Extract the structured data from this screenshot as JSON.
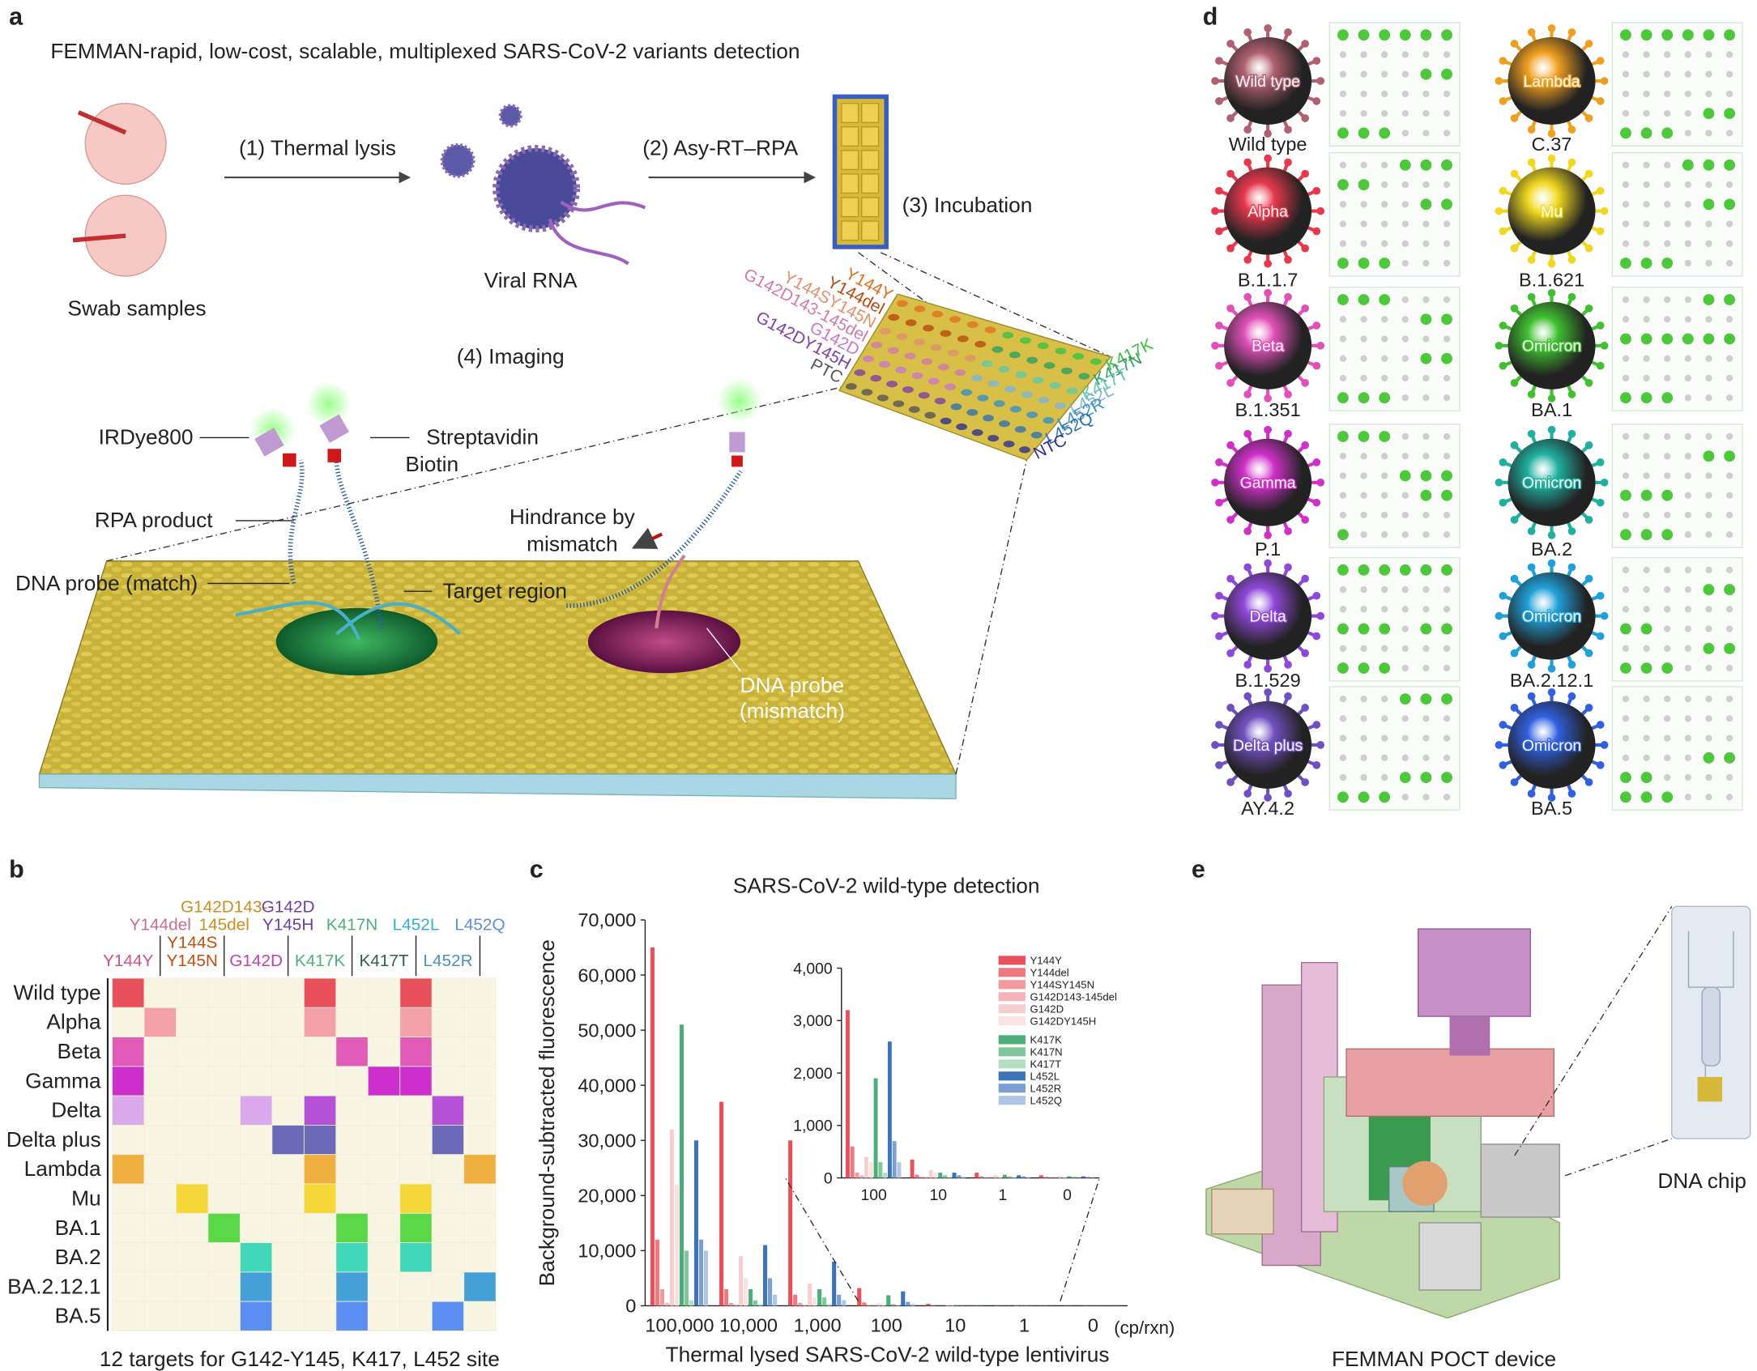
{
  "panel_labels": [
    "a",
    "b",
    "c",
    "d",
    "e"
  ],
  "panel_a": {
    "title": "FEMMAN-rapid, low-cost, scalable, multiplexed SARS-CoV-2 variants detection",
    "steps": [
      "(1) Thermal lysis",
      "(2) Asy-RT–RPA",
      "(3) Incubation",
      "(4) Imaging"
    ],
    "swab": "Swab samples",
    "rna": "Viral RNA",
    "irdye": "IRDye800",
    "streptavidin": "Streptavidin",
    "biotin": "Biotin",
    "rpa": "RPA product",
    "probe_match": "DNA probe (match)",
    "target": "Target region",
    "hindrance": [
      "Hindrance by",
      "mismatch"
    ],
    "probe_mismatch": [
      "DNA probe",
      "(mismatch)"
    ],
    "chip_left": [
      {
        "text": "Y144Y",
        "color": "#e07020"
      },
      {
        "text": "Y144del",
        "color": "#b84a10"
      },
      {
        "text": "Y144SY145N",
        "color": "#e0906a"
      },
      {
        "text": "G142D143-145del",
        "color": "#d07aa8"
      },
      {
        "text": "G142D",
        "color": "#c878c8"
      },
      {
        "text": "G142DY145H",
        "color": "#8040a0"
      },
      {
        "text": "PTC",
        "color": "#555555"
      }
    ],
    "chip_right": [
      {
        "text": "K417K",
        "color": "#3cc040"
      },
      {
        "text": "K417N",
        "color": "#2ea060"
      },
      {
        "text": "K417T",
        "color": "#60c8a8"
      },
      {
        "text": "L452L",
        "color": "#80b4d4"
      },
      {
        "text": "L452R",
        "color": "#3a90c0"
      },
      {
        "text": "L452Q",
        "color": "#3070b0"
      },
      {
        "text": "NTC",
        "color": "#303090"
      }
    ]
  },
  "panel_b": {
    "columns": [
      {
        "lines": [
          "Y144Y"
        ],
        "color": "#d0508a"
      },
      {
        "lines": [
          "Y144del"
        ],
        "color": "#c8708a"
      },
      {
        "lines": [
          "Y144S",
          "Y145N"
        ],
        "color": "#c05010"
      },
      {
        "lines": [
          "G142D143-",
          "145del"
        ],
        "color": "#c79020"
      },
      {
        "lines": [
          "G142D"
        ],
        "color": "#c040b0"
      },
      {
        "lines": [
          "G142D",
          "Y145H"
        ],
        "color": "#7040a0"
      },
      {
        "lines": [
          "K417K"
        ],
        "color": "#50b080"
      },
      {
        "lines": [
          "K417N"
        ],
        "color": "#50b080"
      },
      {
        "lines": [
          "K417T"
        ],
        "color": "#306050"
      },
      {
        "lines": [
          "L452L"
        ],
        "color": "#30b0d0"
      },
      {
        "lines": [
          "L452R"
        ],
        "color": "#5090c0"
      },
      {
        "lines": [
          "L452Q"
        ],
        "color": "#6090d0"
      }
    ],
    "rows": [
      "Wild type",
      "Alpha",
      "Beta",
      "Gamma",
      "Delta",
      "Delta plus",
      "Lambda",
      "Mu",
      "BA.1",
      "BA.2",
      "BA.2.12.1",
      "BA.5"
    ],
    "background": "#f8f6e2",
    "cells": [
      [
        "#e8505b",
        null,
        null,
        null,
        null,
        null,
        "#e8505b",
        null,
        null,
        "#e8505b",
        null,
        null
      ],
      [
        null,
        "#f4a0a8",
        null,
        null,
        null,
        null,
        "#f4a0a8",
        null,
        null,
        "#f4a0a8",
        null,
        null
      ],
      [
        "#e05ab8",
        null,
        null,
        null,
        null,
        null,
        null,
        "#e05ab8",
        null,
        "#e05ab8",
        null,
        null
      ],
      [
        "#cc2fcc",
        null,
        null,
        null,
        null,
        null,
        null,
        null,
        "#cc2fcc",
        "#cc2fcc",
        null,
        null
      ],
      [
        "#dca8ec",
        null,
        null,
        null,
        "#dca8ec",
        null,
        "#b552d8",
        null,
        null,
        null,
        "#b552d8",
        null
      ],
      [
        null,
        null,
        null,
        null,
        null,
        "#6a6ab8",
        "#6a6ab8",
        null,
        null,
        null,
        "#6a6ab8",
        null
      ],
      [
        "#f0b040",
        null,
        null,
        null,
        null,
        null,
        "#f0b040",
        null,
        null,
        null,
        null,
        "#f0b040"
      ],
      [
        null,
        null,
        "#f5d838",
        null,
        null,
        null,
        "#f5d838",
        null,
        null,
        "#f5d838",
        null,
        null
      ],
      [
        null,
        null,
        null,
        "#5ad848",
        null,
        null,
        null,
        "#5ad848",
        null,
        "#5ad848",
        null,
        null
      ],
      [
        null,
        null,
        null,
        null,
        "#40d8b8",
        null,
        null,
        "#40d8b8",
        null,
        "#40d8b8",
        null,
        null
      ],
      [
        null,
        null,
        null,
        null,
        "#45a0d8",
        null,
        null,
        "#45a0d8",
        null,
        null,
        null,
        "#45a0d8"
      ],
      [
        null,
        null,
        null,
        null,
        "#5a8ef0",
        null,
        null,
        "#5a8ef0",
        null,
        null,
        "#5a8ef0",
        null
      ]
    ],
    "caption": "12 targets for G142-Y145, K417, L452 site"
  },
  "chart_data": {
    "type": "bar",
    "title": "SARS-CoV-2 wild-type detection",
    "y_label": "Background-subtracted fluorescence",
    "x_label": "Thermal lysed SARS-CoV-2 wild-type lentivirus",
    "x_unit": "(cp/rxn)",
    "categories": [
      "100,000",
      "10,000",
      "1,000",
      "100",
      "10",
      "1",
      "0"
    ],
    "series": [
      {
        "name": "Y144Y",
        "color": "#e8505b",
        "values": [
          65000,
          37000,
          30000,
          3200,
          350,
          100,
          50
        ]
      },
      {
        "name": "Y144del",
        "color": "#ee7a80",
        "values": [
          12000,
          3000,
          2000,
          600,
          60,
          30,
          20
        ]
      },
      {
        "name": "Y144SY145N",
        "color": "#f29a9e",
        "values": [
          3000,
          500,
          500,
          100,
          20,
          10,
          5
        ]
      },
      {
        "name": "G142D143-145del",
        "color": "#f5b5b8",
        "values": [
          500,
          200,
          100,
          50,
          10,
          5,
          5
        ]
      },
      {
        "name": "G142D",
        "color": "#f8cfd1",
        "values": [
          32000,
          9000,
          4000,
          400,
          150,
          50,
          30
        ]
      },
      {
        "name": "G142DY145H",
        "color": "#fbe2e3",
        "values": [
          22000,
          5000,
          1500,
          300,
          100,
          30,
          20
        ]
      },
      {
        "name": "K417K",
        "color": "#4caf7a",
        "values": [
          51000,
          3000,
          3000,
          1900,
          100,
          60,
          30
        ]
      },
      {
        "name": "K417N",
        "color": "#7fc79b",
        "values": [
          10000,
          1000,
          1500,
          300,
          50,
          30,
          20
        ]
      },
      {
        "name": "K417T",
        "color": "#b3dfc2",
        "values": [
          1000,
          300,
          300,
          100,
          20,
          10,
          5
        ]
      },
      {
        "name": "L452L",
        "color": "#3d74b8",
        "values": [
          30000,
          11000,
          8000,
          2600,
          100,
          50,
          30
        ]
      },
      {
        "name": "L452R",
        "color": "#7a9fd0",
        "values": [
          12000,
          5000,
          2000,
          700,
          50,
          30,
          20
        ]
      },
      {
        "name": "L452Q",
        "color": "#b0c6e6",
        "values": [
          10000,
          2000,
          1000,
          300,
          20,
          10,
          5
        ]
      }
    ],
    "ylim": [
      0,
      70000
    ],
    "yticks": [
      0,
      {
        "value": 10000,
        "label": "10,000"
      },
      {
        "value": 20000,
        "label": "20,000"
      },
      {
        "value": 30000,
        "label": "30,000"
      },
      {
        "value": 40000,
        "label": "40,000"
      },
      {
        "value": 50000,
        "label": "50,000"
      },
      {
        "value": 60000,
        "label": "60,000"
      },
      {
        "value": 70000,
        "label": "70,000"
      }
    ],
    "inset": {
      "ylim": [
        0,
        4000
      ],
      "yticks": [
        0,
        {
          "value": 1000,
          "label": "1,000"
        },
        {
          "value": 2000,
          "label": "2,000"
        },
        {
          "value": 3000,
          "label": "3,000"
        },
        {
          "value": 4000,
          "label": "4,000"
        }
      ]
    }
  },
  "panel_d": {
    "variants": [
      {
        "name": "Wild type",
        "lineage": "Wild type",
        "color": "#b06070",
        "dots": [
          "111111",
          "000000",
          "000011",
          "000000",
          "000000",
          "111000"
        ]
      },
      {
        "name": "Alpha",
        "lineage": "B.1.1.7",
        "color": "#e8384c",
        "dots": [
          "000111",
          "110000",
          "000011",
          "000000",
          "000000",
          "111000"
        ]
      },
      {
        "name": "Beta",
        "lineage": "B.1.351",
        "color": "#e050b8",
        "dots": [
          "111000",
          "000011",
          "000000",
          "000011",
          "000000",
          "111000"
        ]
      },
      {
        "name": "Gamma",
        "lineage": "P.1",
        "color": "#d030c8",
        "dots": [
          "111000",
          "000000",
          "000111",
          "000011",
          "000000",
          "100000"
        ]
      },
      {
        "name": "Delta",
        "lineage": "B.1.529",
        "color": "#9048d8",
        "dots": [
          "111111",
          "000000",
          "000000",
          "111011",
          "000000",
          "111000"
        ]
      },
      {
        "name": "Delta plus",
        "lineage": "AY.4.2",
        "color": "#7050c0",
        "dots": [
          "000111",
          "000000",
          "000000",
          "000000",
          "000111",
          "111000"
        ]
      },
      {
        "name": "Lambda",
        "lineage": "C.37",
        "color": "#f0a020",
        "dots": [
          "111111",
          "000000",
          "000000",
          "000000",
          "000011",
          "111000"
        ]
      },
      {
        "name": "Mu",
        "lineage": "B.1.621",
        "color": "#f0d820",
        "dots": [
          "000111",
          "000000",
          "000011",
          "000000",
          "000000",
          "111000"
        ]
      },
      {
        "name": "Omicron",
        "lineage": "BA.1",
        "color": "#40c030",
        "dots": [
          "000011",
          "000000",
          "111111",
          "000000",
          "000000",
          "111000"
        ]
      },
      {
        "name": "Omicron",
        "lineage": "BA.2",
        "color": "#20b0a0",
        "dots": [
          "000000",
          "000011",
          "000000",
          "111000",
          "000000",
          "111000"
        ]
      },
      {
        "name": "Omicron",
        "lineage": "BA.2.12.1",
        "color": "#20a0d8",
        "dots": [
          "000000",
          "000011",
          "000000",
          "110000",
          "000011",
          "111000"
        ]
      },
      {
        "name": "Omicron",
        "lineage": "BA.5",
        "color": "#3060e0",
        "dots": [
          "000000",
          "000000",
          "000000",
          "000011",
          "110000",
          "111000"
        ]
      }
    ]
  },
  "panel_e": {
    "chip_label": "DNA chip",
    "caption": "FEMMAN POCT device"
  }
}
